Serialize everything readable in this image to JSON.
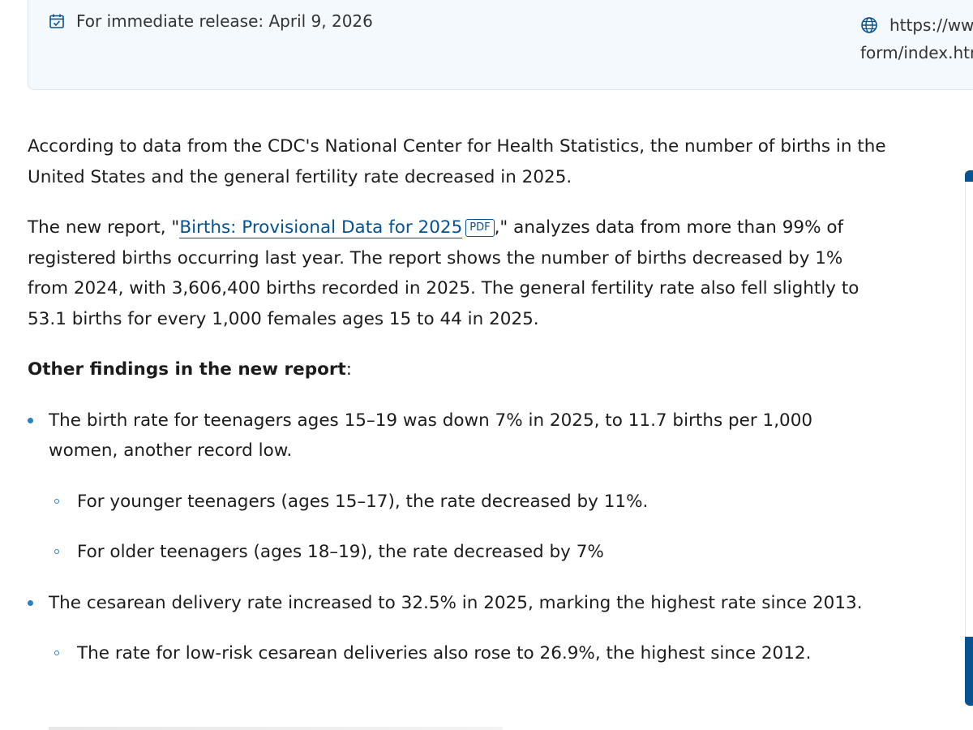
{
  "header": {
    "release_text": "For immediate release: April 9, 2026",
    "url_line1": "https://ww",
    "url_line2": "form/index.htm",
    "calendar_icon": "calendar-check-icon",
    "globe_icon": "globe-icon"
  },
  "article": {
    "p1": "According to data from the CDC's National Center for Health Statistics, the number of births in the United States and the general fertility rate decreased in 2025.",
    "p2_before": "The new report, \"",
    "p2_link": "Births: Provisional Data for 2025",
    "p2_pdf_badge": "PDF",
    "p2_after": ",\" analyzes data from more than 99% of registered births occurring last year. The report shows the number of births decreased by 1% from 2024, with 3,606,400 births recorded in 2025. The general fertility rate also fell slightly to 53.1 births for every 1,000 females ages 15 to 44 in 2025.",
    "findings_heading": "Other findings in the new report",
    "findings_colon": ":",
    "findings": [
      {
        "text": "The birth rate for teenagers ages 15–19 was down 7% in 2025, to 11.7 births per 1,000 women, another record low.",
        "subitems": [
          "For younger teenagers (ages 15–17), the rate decreased by 11%.",
          "For older teenagers (ages 18–19), the rate decreased by 7%"
        ]
      },
      {
        "text": "The cesarean delivery rate increased to 32.5% in 2025, marking the highest rate since 2013.",
        "subitems": [
          "The rate for low-risk cesarean deliveries also rose to 26.9%, the highest since 2012."
        ]
      }
    ]
  },
  "colors": {
    "link": "#075290",
    "bullet": "#2a80c0",
    "info_bar_bg": "#f3f9fc"
  }
}
